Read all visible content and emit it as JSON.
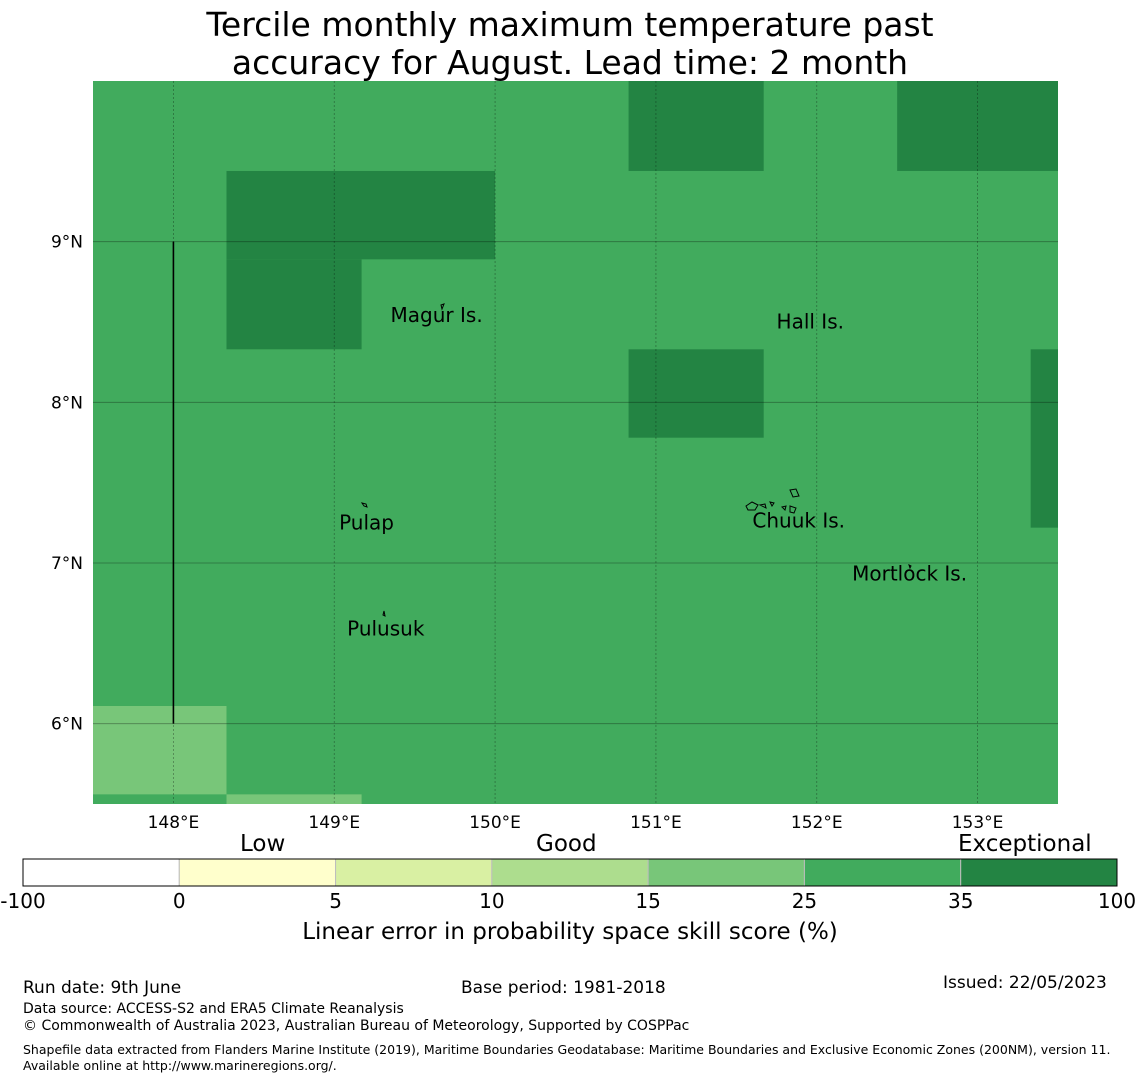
{
  "title": {
    "line1": "Tercile monthly maximum temperature past",
    "line2": "accuracy for August. Lead time: 2 month"
  },
  "map": {
    "lon_range": [
      147.5,
      153.5
    ],
    "lat_range": [
      5.5,
      10.0
    ],
    "grid": true,
    "lon_ticks": [
      148,
      149,
      150,
      151,
      152,
      153
    ],
    "lat_ticks": [
      6,
      7,
      8,
      9
    ],
    "lon_labels": [
      "148°E",
      "149°E",
      "150°E",
      "151°E",
      "152°E",
      "153°E"
    ],
    "lat_labels": [
      "6°N",
      "7°N",
      "8°N",
      "9°N"
    ],
    "cells": [
      {
        "lon": [
          147.5,
          153.5
        ],
        "lat": [
          5.5,
          10.0
        ],
        "category": "25-35",
        "color": "#41ab5d"
      },
      {
        "lon": [
          148.33,
          150.0
        ],
        "lat": [
          8.89,
          9.44
        ],
        "category": "35-100",
        "color": "#238443"
      },
      {
        "lon": [
          148.33,
          149.17
        ],
        "lat": [
          8.33,
          8.89
        ],
        "category": "35-100",
        "color": "#238443"
      },
      {
        "lon": [
          150.83,
          151.67
        ],
        "lat": [
          9.44,
          10.0
        ],
        "category": "35-100",
        "color": "#238443"
      },
      {
        "lon": [
          152.5,
          153.5
        ],
        "lat": [
          9.44,
          10.0
        ],
        "category": "35-100",
        "color": "#238443"
      },
      {
        "lon": [
          150.83,
          151.67
        ],
        "lat": [
          7.78,
          8.33
        ],
        "category": "35-100",
        "color": "#238443"
      },
      {
        "lon": [
          153.33,
          153.5
        ],
        "lat": [
          7.22,
          8.33
        ],
        "category": "35-100",
        "color": "#238443"
      },
      {
        "lon": [
          147.5,
          148.33
        ],
        "lat": [
          5.56,
          6.11
        ],
        "category": "15-25",
        "color": "#78c679"
      },
      {
        "lon": [
          148.33,
          149.17
        ],
        "lat": [
          5.5,
          5.56
        ],
        "category": "15-25",
        "color": "#78c679"
      }
    ],
    "boundary_line": {
      "lon": 148.0,
      "lat": [
        6.0,
        9.0
      ]
    },
    "places": [
      {
        "name": "Magur Is.",
        "lon": 149.35,
        "lat": 8.5
      },
      {
        "name": "Hall Is.",
        "lon": 151.75,
        "lat": 8.46
      },
      {
        "name": "Pulap",
        "lon": 149.03,
        "lat": 7.21
      },
      {
        "name": "Chuuk Is.",
        "lon": 151.6,
        "lat": 7.22
      },
      {
        "name": "Mortlock Is.",
        "lon": 152.22,
        "lat": 6.89
      },
      {
        "name": "Pulusuk",
        "lon": 149.08,
        "lat": 6.55
      }
    ]
  },
  "colorbar": {
    "categories": [
      "Low",
      "Good",
      "Exceptional"
    ],
    "ticks": [
      "-100",
      "0",
      "5",
      "10",
      "15",
      "25",
      "35",
      "100"
    ],
    "colors": [
      "#ffffff",
      "#ffffcc",
      "#d9f0a3",
      "#addd8e",
      "#78c679",
      "#41ab5d",
      "#238443"
    ],
    "label": "Linear error in probability space skill score (%)"
  },
  "footer": {
    "run_date": "Run date: 9th June",
    "base_period": "Base period: 1981-2018",
    "issued": "Issued: 22/05/2023",
    "data_source": "Data source: ACCESS-S2 and ERA5 Climate Reanalysis",
    "copyright": "© Commonwealth of Australia 2023, Australian Bureau of Meteorology, Supported by COSPPac",
    "shapefile": "Shapefile data extracted from Flanders Marine Institute (2019), Maritime Boundaries Geodatabase: Maritime Boundaries and Exclusive Economic Zones (200NM), version 11. Available online at http://www.marineregions.org/."
  }
}
